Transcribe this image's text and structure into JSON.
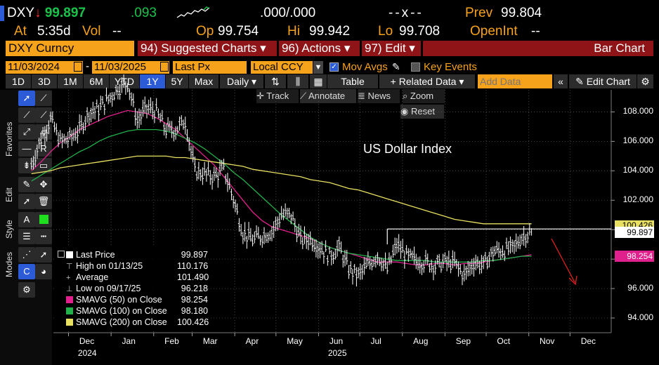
{
  "quote": {
    "ticker": "DXY",
    "last": "99.897",
    "change": ".093",
    "bidask_left": ".000",
    "bidask_sep": "/",
    "bidask_right": ".000",
    "size": "--x--",
    "prev_label": "Prev",
    "prev_value": "99.804",
    "at_label": "At",
    "at_value": "5:35d",
    "vol_label": "Vol",
    "vol_value": "--",
    "op_label": "Op",
    "op_value": "99.754",
    "hi_label": "Hi",
    "hi_value": "99.942",
    "lo_label": "Lo",
    "lo_value": "99.708",
    "oi_label": "OpenInt",
    "oi_value": "--"
  },
  "menubar": {
    "security": "DXY Curncy",
    "suggested": "94) Suggested Charts ▾",
    "actions": "96) Actions ▾",
    "edit": "97) Edit ▾",
    "chart_type": "Bar Chart"
  },
  "controls": {
    "start_date": "11/03/2024",
    "end_date": "11/03/2025",
    "field": "Last Px",
    "currency": "Local CCY",
    "mov_avgs": "Mov Avgs",
    "key_events": "Key Events"
  },
  "periods": [
    "1D",
    "3D",
    "1M",
    "6M",
    "YTD",
    "1Y",
    "5Y",
    "Max"
  ],
  "selected_period": "1Y",
  "toolbar": {
    "frequency": "Daily ▾",
    "table": "Table",
    "related": "+ Related Data ▾",
    "add_data_placeholder": "Add Data",
    "edit_chart": "Edit Chart"
  },
  "chart_tools": {
    "track": "Track",
    "annotate": "Annotate",
    "news": "News",
    "zoom": "Zoom",
    "reset": "Reset"
  },
  "side_tabs": [
    "Favorites",
    "Edit",
    "Style",
    "Modes"
  ],
  "colors": {
    "accent_orange": "#f7a21b",
    "menu_red": "#8e1418",
    "price": "#ffffff",
    "sma50": "#e0208c",
    "sma100": "#22b04a",
    "sma200": "#e8e060"
  },
  "chart_data": {
    "type": "bar",
    "title": "US Dollar Index",
    "ylim": [
      93,
      109.5
    ],
    "yticks": [
      "108.000",
      "106.000",
      "104.000",
      "102.000",
      "100.000",
      "98.000",
      "96.000",
      "94.000"
    ],
    "xticks": [
      "Dec",
      "Jan",
      "Feb",
      "Mar",
      "Apr",
      "May",
      "Jun",
      "Jul",
      "Aug",
      "Sep",
      "Oct",
      "Nov",
      "Dec"
    ],
    "xyears": [
      "2024",
      "2025"
    ],
    "price_series": {
      "name": "Last Price",
      "x": [
        "2024-11-04",
        "2024-11-11",
        "2024-11-18",
        "2024-11-25",
        "2024-12-02",
        "2024-12-09",
        "2024-12-16",
        "2024-12-23",
        "2024-12-30",
        "2025-01-06",
        "2025-01-13",
        "2025-01-20",
        "2025-01-27",
        "2025-02-03",
        "2025-02-10",
        "2025-02-17",
        "2025-02-24",
        "2025-03-03",
        "2025-03-10",
        "2025-03-17",
        "2025-03-24",
        "2025-03-31",
        "2025-04-07",
        "2025-04-14",
        "2025-04-21",
        "2025-04-28",
        "2025-05-05",
        "2025-05-12",
        "2025-05-19",
        "2025-05-26",
        "2025-06-02",
        "2025-06-09",
        "2025-06-16",
        "2025-06-23",
        "2025-06-30",
        "2025-07-07",
        "2025-07-14",
        "2025-07-21",
        "2025-07-28",
        "2025-08-04",
        "2025-08-11",
        "2025-08-18",
        "2025-08-25",
        "2025-09-01",
        "2025-09-08",
        "2025-09-15",
        "2025-09-22",
        "2025-09-29",
        "2025-10-06",
        "2025-10-13",
        "2025-10-20",
        "2025-10-27",
        "2025-11-03"
      ],
      "values": [
        104.4,
        106.2,
        107.5,
        106.0,
        106.2,
        106.8,
        108.0,
        108.2,
        108.9,
        109.6,
        110.0,
        107.4,
        108.3,
        108.0,
        106.8,
        106.8,
        107.4,
        104.0,
        103.8,
        103.6,
        104.1,
        102.1,
        99.8,
        99.3,
        99.6,
        99.9,
        101.0,
        101.0,
        99.3,
        99.4,
        98.8,
        98.2,
        98.8,
        97.3,
        96.9,
        97.6,
        98.3,
        97.3,
        99.0,
        98.2,
        97.9,
        97.8,
        97.6,
        97.8,
        97.7,
        96.9,
        97.8,
        97.6,
        98.5,
        98.6,
        98.7,
        99.5,
        99.9
      ]
    },
    "sma_series": [
      {
        "name": "SMAVG (50)",
        "values": [
          104.0,
          104.6,
          105.3,
          105.9,
          106.3,
          106.8,
          107.1,
          107.4,
          107.7,
          107.9,
          108.1,
          108.0,
          107.9,
          107.6,
          107.2,
          106.8,
          106.2,
          105.6,
          105.0,
          104.4,
          103.6,
          102.8,
          102.0,
          101.2,
          100.6,
          100.2,
          100.0,
          99.8,
          99.6,
          99.4,
          99.1,
          98.8,
          98.6,
          98.4,
          98.2,
          98.0,
          97.8,
          97.8,
          97.8,
          97.7,
          97.6,
          97.6,
          97.7,
          97.7,
          97.6,
          97.7,
          97.7,
          97.8,
          97.9,
          98.0,
          98.1,
          98.2,
          98.3
        ]
      },
      {
        "name": "SMAVG (100)",
        "values": [
          103.3,
          103.7,
          104.1,
          104.5,
          104.9,
          105.3,
          105.6,
          106.0,
          106.3,
          106.5,
          106.7,
          106.8,
          106.8,
          106.8,
          106.7,
          106.5,
          106.2,
          105.9,
          105.5,
          105.0,
          104.5,
          103.9,
          103.4,
          102.8,
          102.2,
          101.6,
          101.0,
          100.5,
          100.0,
          99.5,
          99.1,
          98.8,
          98.6,
          98.4,
          98.3,
          98.2,
          98.1,
          98.0,
          97.9,
          97.9,
          97.9,
          97.9,
          97.8,
          97.8,
          97.8,
          97.8,
          97.8,
          97.9,
          97.9,
          98.0,
          98.1,
          98.2,
          98.2
        ]
      },
      {
        "name": "SMAVG (200)",
        "values": [
          103.8,
          103.9,
          104.0,
          104.2,
          104.3,
          104.4,
          104.5,
          104.6,
          104.7,
          104.8,
          104.9,
          105.0,
          105.0,
          105.0,
          105.0,
          104.9,
          104.9,
          104.8,
          104.7,
          104.6,
          104.5,
          104.4,
          104.3,
          104.1,
          104.0,
          103.9,
          103.8,
          103.7,
          103.6,
          103.4,
          103.3,
          103.2,
          103.0,
          102.8,
          102.7,
          102.5,
          102.3,
          102.1,
          101.9,
          101.7,
          101.5,
          101.3,
          101.1,
          100.9,
          100.7,
          100.6,
          100.5,
          100.4,
          100.4,
          100.4,
          100.4,
          100.4,
          100.4
        ]
      }
    ],
    "last_value_tags": [
      "100.426",
      "99.897",
      "98.254"
    ],
    "legend": [
      {
        "label": "Last Price",
        "value": "99.897",
        "kind": "box",
        "color": "#ffffff"
      },
      {
        "label": "High on 01/13/25",
        "value": "110.176",
        "kind": "high"
      },
      {
        "label": "Average",
        "value": "101.490",
        "kind": "avg"
      },
      {
        "label": "Low on 09/17/25",
        "value": "96.218",
        "kind": "low"
      },
      {
        "label": "SMAVG (50)  on Close",
        "value": "98.254",
        "kind": "box",
        "color": "#e0208c"
      },
      {
        "label": "SMAVG (100)  on Close",
        "value": "98.180",
        "kind": "box",
        "color": "#22b04a"
      },
      {
        "label": "SMAVG (200)  on Close",
        "value": "100.426",
        "kind": "box",
        "color": "#e8e060"
      }
    ],
    "legend_position": "bottom-left",
    "grid": true
  }
}
